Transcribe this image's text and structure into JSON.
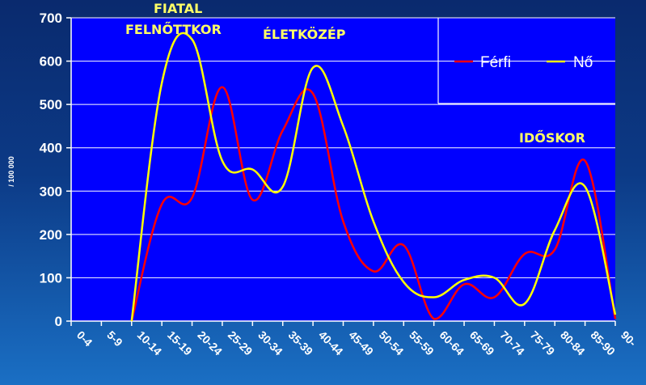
{
  "chart_data": {
    "type": "line",
    "categories": [
      "0-4",
      "5-9",
      "10-14",
      "15-19",
      "20-24",
      "25-29",
      "30-34",
      "35-39",
      "40-44",
      "45-49",
      "50-54",
      "55-59",
      "60-64",
      "65-69",
      "70-74",
      "75-79",
      "80-84",
      "85-90",
      "90-"
    ],
    "ylabel": "/ 100 000",
    "ylim": [
      0,
      700
    ],
    "yticks": [
      0,
      100,
      200,
      300,
      400,
      500,
      600,
      700
    ],
    "grid": true,
    "legend_position": "top-right",
    "series": [
      {
        "name": "Férfi",
        "color": "#ff0000",
        "points": [
          [
            2,
            0
          ],
          [
            3,
            270
          ],
          [
            4,
            285
          ],
          [
            5,
            540
          ],
          [
            6,
            280
          ],
          [
            7,
            440
          ],
          [
            8,
            525
          ],
          [
            9,
            230
          ],
          [
            10,
            115
          ],
          [
            11,
            175
          ],
          [
            12,
            5
          ],
          [
            13,
            85
          ],
          [
            14,
            55
          ],
          [
            15,
            155
          ],
          [
            16,
            165
          ],
          [
            17,
            370
          ],
          [
            18,
            5
          ]
        ]
      },
      {
        "name": "Nő",
        "color": "#ffff00",
        "points": [
          [
            2,
            0
          ],
          [
            3,
            550
          ],
          [
            4,
            650
          ],
          [
            5,
            370
          ],
          [
            6,
            350
          ],
          [
            7,
            310
          ],
          [
            8,
            585
          ],
          [
            9,
            450
          ],
          [
            10,
            230
          ],
          [
            11,
            90
          ],
          [
            12,
            55
          ],
          [
            13,
            95
          ],
          [
            14,
            100
          ],
          [
            15,
            40
          ],
          [
            16,
            210
          ],
          [
            17,
            310
          ],
          [
            18,
            15
          ]
        ]
      }
    ],
    "annotations": [
      {
        "text": "FIATAL"
      },
      {
        "text": "FELNŐTTKOR"
      },
      {
        "text": "ÉLETKÖZÉP"
      },
      {
        "text": "IDŐSKOR"
      }
    ]
  }
}
